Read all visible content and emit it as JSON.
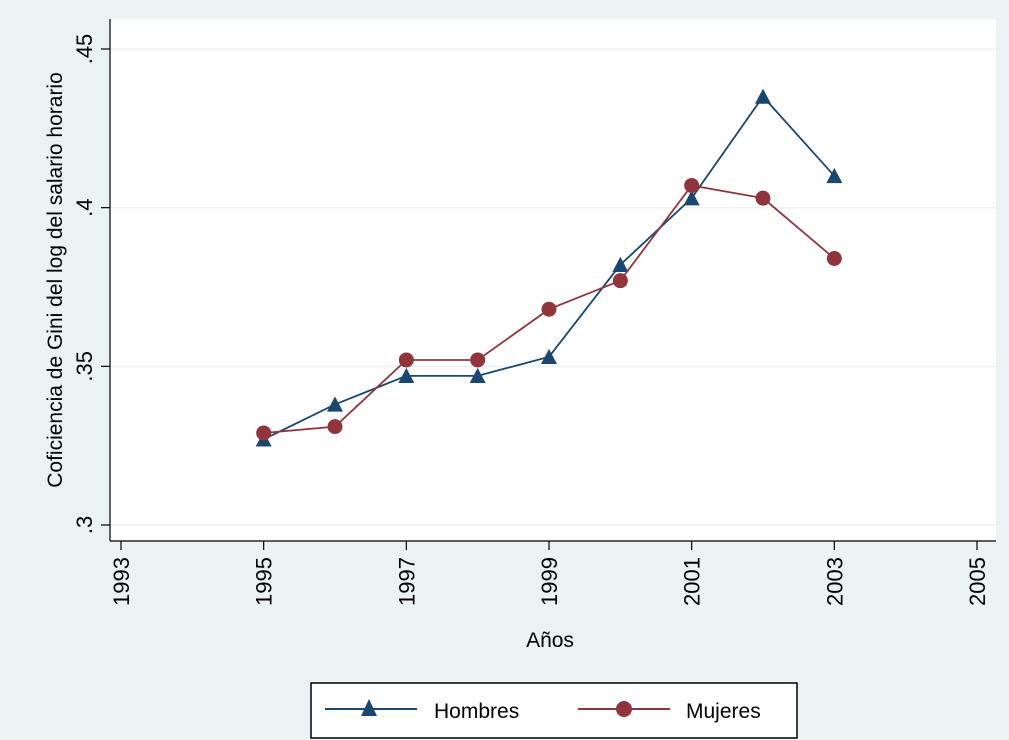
{
  "chart_data": {
    "type": "line",
    "title": "",
    "xlabel": "Años",
    "ylabel": "Coficiencia de Gini del log del salario horario",
    "xlim": [
      1993,
      2005
    ],
    "ylim": [
      0.3,
      0.45
    ],
    "x_ticks": [
      {
        "value": 1993,
        "label": "1993"
      },
      {
        "value": 1995,
        "label": "1995"
      },
      {
        "value": 1997,
        "label": "1997"
      },
      {
        "value": 1999,
        "label": "1999"
      },
      {
        "value": 2001,
        "label": "2001"
      },
      {
        "value": 2003,
        "label": "2003"
      },
      {
        "value": 2005,
        "label": "2005"
      }
    ],
    "y_ticks": [
      {
        "value": 0.3,
        "label": ".3"
      },
      {
        "value": 0.35,
        "label": ".35"
      },
      {
        "value": 0.4,
        "label": ".4"
      },
      {
        "value": 0.45,
        "label": ".45"
      }
    ],
    "grid": true,
    "legend_position": "bottom",
    "x": [
      1995,
      1996,
      1997,
      1998,
      1999,
      2000,
      2001,
      2002,
      2003
    ],
    "series": [
      {
        "name": "Hombres",
        "marker": "triangle",
        "color": "#1a476f",
        "values": [
          0.327,
          0.338,
          0.347,
          0.347,
          0.353,
          0.382,
          0.403,
          0.435,
          0.41
        ]
      },
      {
        "name": "Mujeres",
        "marker": "circle",
        "color": "#90353b",
        "values": [
          0.329,
          0.331,
          0.352,
          0.352,
          0.368,
          0.377,
          0.407,
          0.403,
          0.384
        ]
      }
    ]
  },
  "colors": {
    "outer_background": "#eaf2f3",
    "plot_background": "#ffffff",
    "grid": "#eaf2f3"
  }
}
